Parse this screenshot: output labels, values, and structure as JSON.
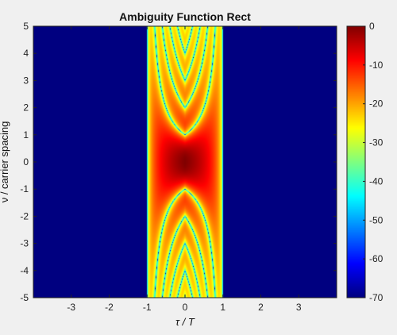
{
  "chart_data": {
    "type": "heatmap",
    "title": "Ambiguity Function Rect",
    "xlabel": "τ / T",
    "ylabel": "ν / carrier spacing",
    "xlim": [
      -4,
      4
    ],
    "ylim": [
      -5,
      5
    ],
    "x_ticks": [
      -3,
      -2,
      -1,
      0,
      1,
      2,
      3
    ],
    "y_ticks": [
      -5,
      -4,
      -3,
      -2,
      -1,
      0,
      1,
      2,
      3,
      4,
      5
    ],
    "colorbar": {
      "range": [
        -70,
        0
      ],
      "ticks": [
        0,
        -10,
        -20,
        -30,
        -40,
        -50,
        -60,
        -70
      ],
      "colormap": "jet"
    },
    "grid": false,
    "series": [
      {
        "values": {
          "function": "20*log10(|(1-|tau|) * sinc(nu*(1-|tau|))|) dB",
          "tau_support": [
            -1,
            1
          ],
          "floor_db": -70
        }
      }
    ]
  }
}
